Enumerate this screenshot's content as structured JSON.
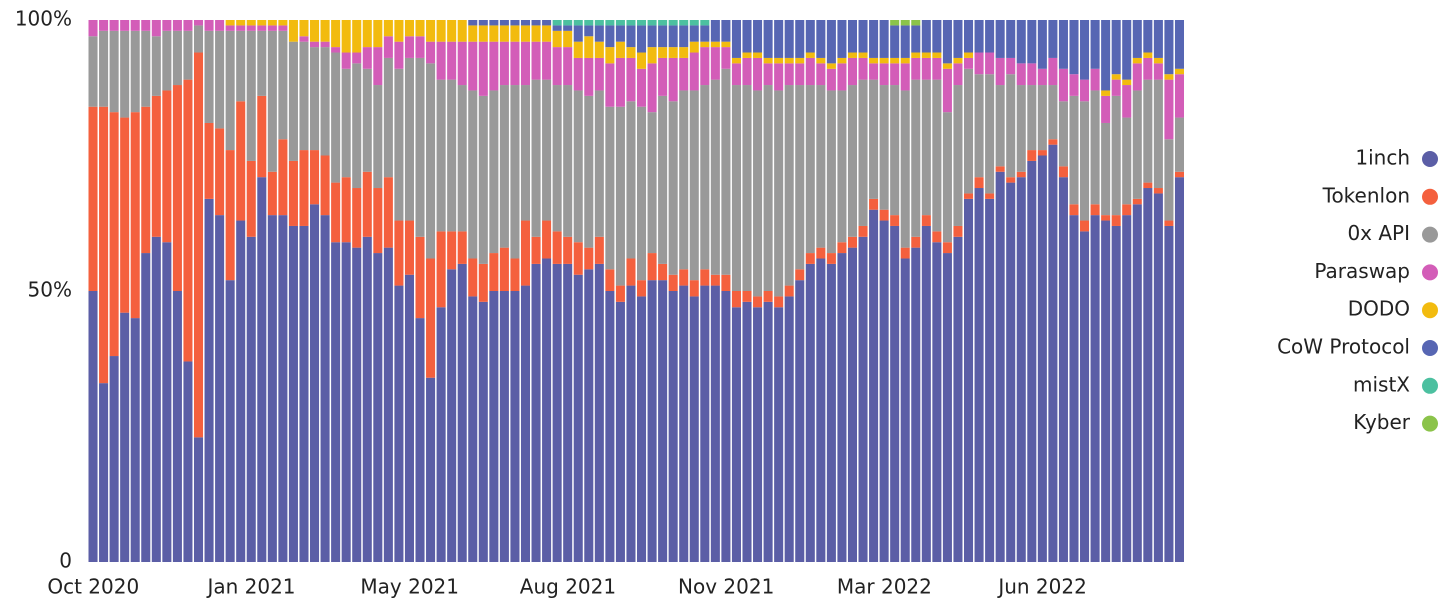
{
  "chart_data": {
    "type": "stacked_bar",
    "categories": [
      "Oct 2020",
      null,
      null,
      null,
      null,
      null,
      null,
      null,
      null,
      null,
      null,
      null,
      null,
      null,
      null,
      "Jan 2021",
      null,
      null,
      null,
      null,
      null,
      null,
      null,
      null,
      null,
      null,
      null,
      null,
      null,
      null,
      "May 2021",
      null,
      null,
      null,
      null,
      null,
      null,
      null,
      null,
      null,
      null,
      null,
      null,
      null,
      null,
      "Aug 2021",
      null,
      null,
      null,
      null,
      null,
      null,
      null,
      null,
      null,
      null,
      null,
      null,
      null,
      null,
      "Nov 2021",
      null,
      null,
      null,
      null,
      null,
      null,
      null,
      null,
      null,
      null,
      null,
      null,
      null,
      null,
      "Mar 2022",
      null,
      null,
      null,
      null,
      null,
      null,
      null,
      null,
      null,
      null,
      null,
      null,
      null,
      null,
      "Jun 2022",
      null,
      null,
      null,
      null,
      null,
      null,
      null,
      null,
      null,
      null,
      null,
      null,
      null
    ],
    "ylim": [
      0,
      100
    ],
    "yticks": [
      {
        "value": 0,
        "label": "0"
      },
      {
        "value": 50,
        "label": "50%"
      },
      {
        "value": 100,
        "label": "100%"
      }
    ],
    "legend": "right",
    "series": [
      {
        "name": "1inch",
        "color": "#5b5ea6",
        "values": [
          50,
          33,
          38,
          46,
          45,
          57,
          60,
          59,
          50,
          37,
          23,
          67,
          64,
          52,
          63,
          60,
          71,
          64,
          64,
          62,
          62,
          66,
          64,
          59,
          59,
          58,
          60,
          57,
          58,
          51,
          53,
          45,
          34,
          47,
          54,
          55,
          49,
          48,
          50,
          50,
          50,
          51,
          55,
          56,
          55,
          55,
          53,
          54,
          55,
          50,
          48,
          51,
          49,
          52,
          52,
          50,
          51,
          49,
          51,
          51,
          50,
          47,
          48,
          47,
          48,
          47,
          49,
          52,
          55,
          56,
          55,
          57,
          58,
          60,
          65,
          63,
          62,
          56,
          58,
          62,
          59,
          57,
          60,
          67,
          69,
          67,
          72,
          70,
          71,
          74,
          75,
          77,
          71,
          64,
          61,
          64,
          63,
          62,
          64,
          66,
          69,
          68,
          62,
          71
        ]
      },
      {
        "name": "Tokenlon",
        "color": "#f4603e",
        "values": [
          34,
          51,
          45,
          36,
          38,
          27,
          26,
          28,
          38,
          52,
          71,
          14,
          16,
          24,
          22,
          14,
          15,
          8,
          14,
          12,
          14,
          10,
          11,
          11,
          12,
          11,
          12,
          12,
          13,
          12,
          10,
          15,
          22,
          14,
          7,
          6,
          7,
          7,
          7,
          8,
          6,
          12,
          5,
          7,
          6,
          5,
          6,
          4,
          5,
          4,
          3,
          5,
          3,
          5,
          3,
          3,
          3,
          3,
          3,
          2,
          3,
          3,
          2,
          2,
          2,
          2,
          2,
          2,
          2,
          2,
          2,
          2,
          2,
          2,
          2,
          2,
          2,
          2,
          2,
          2,
          2,
          2,
          2,
          1,
          2,
          1,
          1,
          1,
          1,
          2,
          1,
          1,
          2,
          2,
          2,
          2,
          1,
          2,
          2,
          1,
          1,
          1,
          1,
          1
        ]
      },
      {
        "name": "0x API",
        "color": "#999999",
        "values": [
          13,
          14,
          15,
          16,
          15,
          14,
          11,
          11,
          10,
          9,
          5,
          17,
          18,
          22,
          13,
          24,
          12,
          26,
          20,
          22,
          20,
          19,
          20,
          24,
          20,
          23,
          19,
          19,
          22,
          28,
          30,
          33,
          36,
          28,
          28,
          27,
          31,
          31,
          30,
          30,
          32,
          25,
          29,
          26,
          27,
          28,
          28,
          28,
          27,
          30,
          33,
          29,
          32,
          26,
          31,
          32,
          33,
          35,
          34,
          36,
          38,
          38,
          38,
          38,
          38,
          38,
          37,
          34,
          31,
          30,
          30,
          28,
          28,
          27,
          22,
          23,
          24,
          29,
          29,
          25,
          28,
          24,
          26,
          23,
          19,
          22,
          15,
          19,
          16,
          12,
          12,
          10,
          12,
          20,
          22,
          21,
          17,
          22,
          16,
          20,
          19,
          20,
          15,
          10
        ]
      },
      {
        "name": "Paraswap",
        "color": "#d35db8",
        "values": [
          3,
          2,
          2,
          2,
          2,
          2,
          3,
          2,
          2,
          2,
          1,
          2,
          2,
          1,
          1,
          1,
          1,
          1,
          1,
          0,
          1,
          1,
          1,
          1,
          3,
          2,
          4,
          7,
          4,
          5,
          4,
          4,
          4,
          7,
          7,
          8,
          9,
          10,
          9,
          8,
          8,
          8,
          7,
          7,
          7,
          7,
          6,
          7,
          6,
          8,
          9,
          8,
          7,
          9,
          7,
          8,
          6,
          7,
          7,
          6,
          4,
          4,
          5,
          6,
          4,
          5,
          4,
          4,
          5,
          4,
          4,
          5,
          5,
          4,
          3,
          4,
          4,
          5,
          4,
          4,
          4,
          8,
          4,
          2,
          4,
          4,
          5,
          3,
          4,
          4,
          3,
          5,
          6,
          4,
          4,
          4,
          5,
          3,
          6,
          5,
          4,
          3,
          11,
          8
        ]
      },
      {
        "name": "DODO",
        "color": "#f2bb0f",
        "values": [
          0,
          0,
          0,
          0,
          0,
          0,
          0,
          0,
          0,
          0,
          0,
          0,
          0,
          1,
          1,
          1,
          1,
          1,
          1,
          4,
          3,
          4,
          4,
          5,
          6,
          6,
          5,
          5,
          3,
          4,
          3,
          3,
          4,
          4,
          4,
          4,
          3,
          3,
          3,
          3,
          3,
          3,
          3,
          3,
          3,
          3,
          3,
          4,
          3,
          3,
          3,
          2,
          3,
          3,
          2,
          2,
          2,
          2,
          1,
          1,
          1,
          1,
          1,
          1,
          1,
          1,
          1,
          1,
          1,
          1,
          1,
          1,
          1,
          1,
          1,
          1,
          1,
          1,
          1,
          1,
          1,
          1,
          1,
          1,
          0,
          0,
          0,
          0,
          0,
          0,
          0,
          0,
          0,
          0,
          0,
          0,
          1,
          1,
          1,
          1,
          1,
          1,
          1,
          1
        ]
      },
      {
        "name": "CoW Protocol",
        "color": "#5766b3",
        "values": [
          0,
          0,
          0,
          0,
          0,
          0,
          0,
          0,
          0,
          0,
          0,
          0,
          0,
          0,
          0,
          0,
          0,
          0,
          0,
          0,
          0,
          0,
          0,
          0,
          0,
          0,
          0,
          0,
          0,
          0,
          0,
          0,
          0,
          0,
          0,
          0,
          1,
          1,
          1,
          1,
          1,
          1,
          1,
          1,
          1,
          1,
          3,
          2,
          3,
          4,
          3,
          4,
          5,
          4,
          4,
          4,
          4,
          3,
          3,
          4,
          4,
          7,
          6,
          6,
          7,
          7,
          7,
          7,
          6,
          7,
          8,
          7,
          6,
          6,
          7,
          7,
          6,
          6,
          5,
          6,
          6,
          8,
          7,
          6,
          6,
          6,
          7,
          7,
          8,
          8,
          9,
          7,
          9,
          10,
          11,
          9,
          13,
          10,
          11,
          7,
          6,
          7,
          10,
          9
        ]
      },
      {
        "name": "mistX",
        "color": "#4cc0a0",
        "values": [
          0,
          0,
          0,
          0,
          0,
          0,
          0,
          0,
          0,
          0,
          0,
          0,
          0,
          0,
          0,
          0,
          0,
          0,
          0,
          0,
          0,
          0,
          0,
          0,
          0,
          0,
          0,
          0,
          0,
          0,
          0,
          0,
          0,
          0,
          0,
          0,
          0,
          0,
          0,
          0,
          0,
          0,
          0,
          0,
          1,
          1,
          1,
          1,
          1,
          1,
          1,
          1,
          1,
          1,
          1,
          1,
          1,
          1,
          1,
          0,
          0,
          0,
          0,
          0,
          0,
          0,
          0,
          0,
          0,
          0,
          0,
          0,
          0,
          0,
          0,
          0,
          0,
          0,
          0,
          0,
          0,
          0,
          0,
          0,
          0,
          0,
          0,
          0,
          0,
          0,
          0,
          0,
          0,
          0,
          0,
          0,
          0,
          0,
          0,
          0,
          0,
          0,
          0,
          0
        ]
      },
      {
        "name": "Kyber",
        "color": "#8bc34a",
        "values": [
          0,
          0,
          0,
          0,
          0,
          0,
          0,
          0,
          0,
          0,
          0,
          0,
          0,
          0,
          0,
          0,
          0,
          0,
          0,
          0,
          0,
          0,
          0,
          0,
          0,
          0,
          0,
          0,
          0,
          0,
          0,
          0,
          0,
          0,
          0,
          0,
          0,
          0,
          0,
          0,
          0,
          0,
          0,
          0,
          0,
          0,
          0,
          0,
          0,
          0,
          0,
          0,
          0,
          0,
          0,
          0,
          0,
          0,
          0,
          0,
          0,
          0,
          0,
          0,
          0,
          0,
          0,
          0,
          0,
          0,
          0,
          0,
          0,
          0,
          0,
          0,
          1,
          1,
          1,
          0,
          0,
          0,
          0,
          0,
          0,
          0,
          0,
          0,
          0,
          0,
          0,
          0,
          0,
          0,
          0,
          0,
          0,
          0,
          0,
          0,
          0,
          0,
          0,
          0
        ]
      }
    ]
  }
}
